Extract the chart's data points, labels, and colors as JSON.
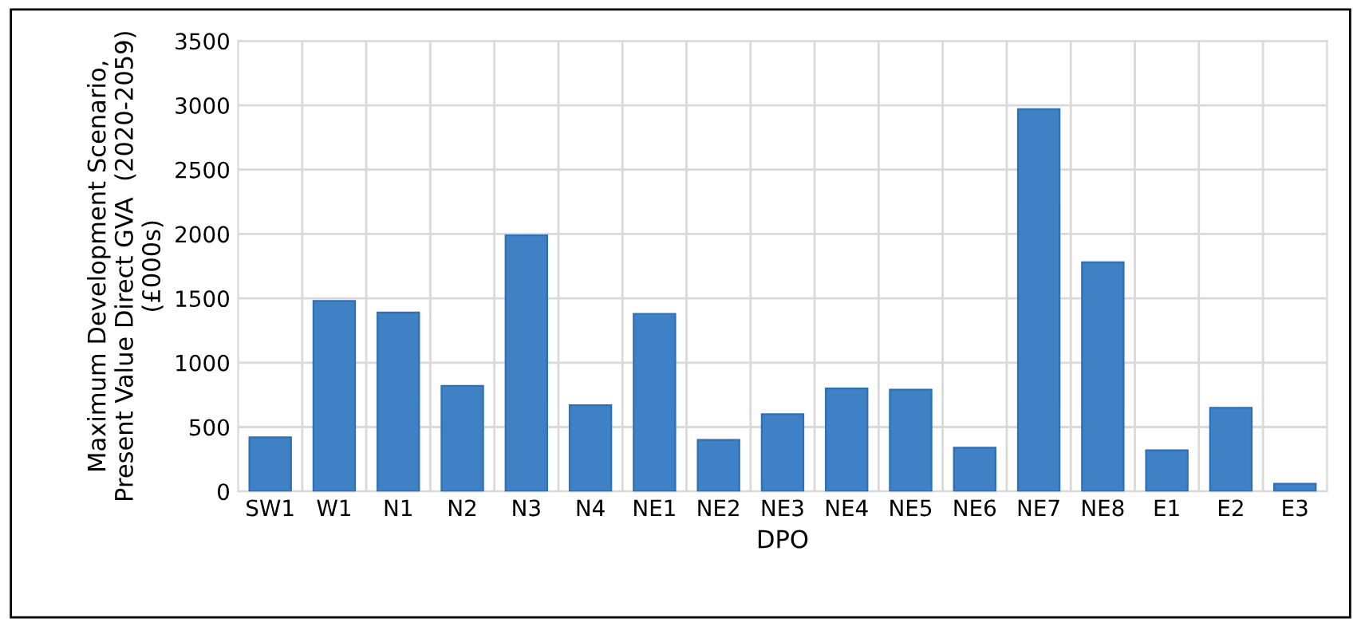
{
  "chart_data": {
    "type": "bar",
    "xlabel": "DPO",
    "ylabel": "Maximum Development Scenario,\nPresent Value Direct GVA  (2020-2059)\n(£000s)",
    "categories": [
      "SW1",
      "W1",
      "N1",
      "N2",
      "N3",
      "N4",
      "NE1",
      "NE2",
      "NE3",
      "NE4",
      "NE5",
      "NE6",
      "NE7",
      "NE8",
      "E1",
      "E2",
      "E3"
    ],
    "values": [
      420,
      1480,
      1390,
      820,
      1990,
      670,
      1380,
      400,
      600,
      800,
      790,
      340,
      2970,
      1780,
      320,
      650,
      60
    ],
    "color": "#4080c4",
    "ylim": [
      0,
      3500
    ],
    "yticks": [
      0,
      500,
      1000,
      1500,
      2000,
      2500,
      3000,
      3500
    ],
    "grid": true
  }
}
